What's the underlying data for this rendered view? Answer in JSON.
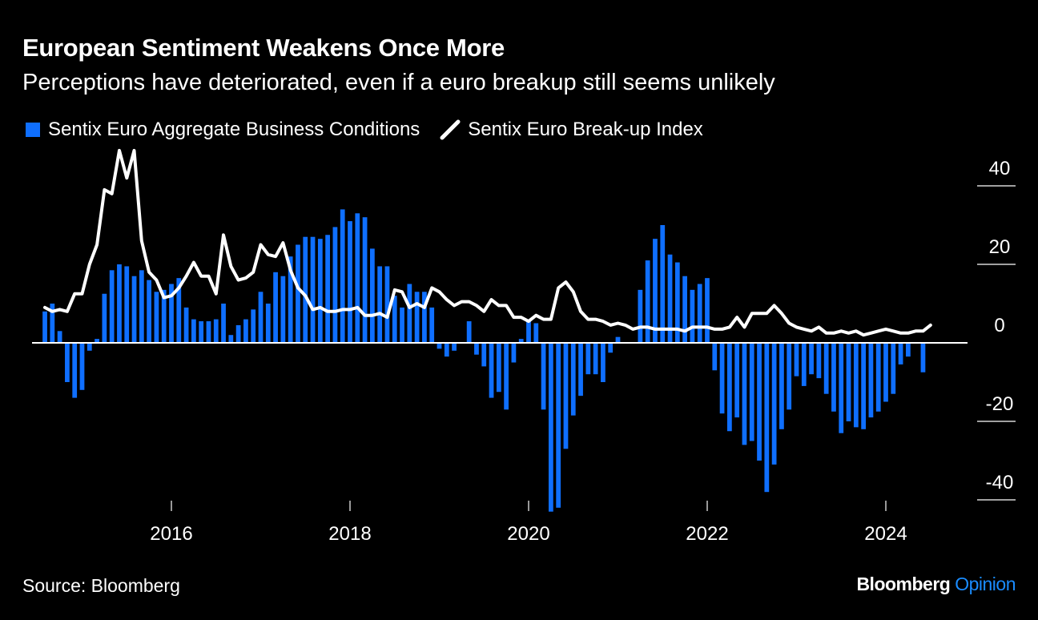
{
  "header": {
    "title": "European Sentiment Weakens Once More",
    "subtitle": "Perceptions have deteriorated, even if a euro breakup still seems unlikely"
  },
  "footer": {
    "source": "Source: Bloomberg",
    "brand_name": "Bloomberg",
    "brand_accent": "Opinion"
  },
  "colors": {
    "background": "#000000",
    "bars": "#0f6fff",
    "line": "#ffffff",
    "zero_line": "#ffffff",
    "brand_accent": "#1a8cff"
  },
  "chart_data": {
    "type": "bar",
    "title": "European Sentiment Weakens Once More",
    "subtitle": "Perceptions have deteriorated, even if a euro breakup still seems unlikely",
    "legend_position": "top-left",
    "grid": false,
    "y_axis": {
      "position": "right",
      "ylim": [
        -42,
        46
      ],
      "ticks": [
        40,
        20,
        0,
        -20,
        -40
      ],
      "tick_labels": [
        "40",
        "20",
        "0",
        "-20",
        "-40"
      ]
    },
    "x_axis": {
      "xlim": [
        2014.58,
        2025.0
      ],
      "ticks": [
        2016,
        2018,
        2020,
        2022,
        2024
      ],
      "tick_labels": [
        "2016",
        "2018",
        "2020",
        "2022",
        "2024"
      ]
    },
    "series": [
      {
        "name": "Sentix Euro Aggregate Business Conditions",
        "type": "bar",
        "start": [
          2014,
          8
        ],
        "values": [
          8,
          10,
          3,
          -10,
          -14,
          -12,
          -2,
          1,
          12.5,
          18.5,
          20,
          19.5,
          17,
          18.5,
          16,
          13,
          13.5,
          15,
          16.5,
          9,
          6,
          5.5,
          5.5,
          6,
          10,
          2,
          4.5,
          6,
          8.5,
          13,
          10,
          18,
          17,
          22,
          25,
          27,
          27,
          26.5,
          27.5,
          29.5,
          34,
          31,
          33,
          32,
          24,
          19.5,
          19.5,
          12,
          9,
          15,
          13,
          13,
          9,
          -1.5,
          -3.5,
          -2,
          0,
          5.5,
          -3,
          -6,
          -14,
          -12.5,
          -17,
          -5,
          1,
          6,
          5,
          -17,
          -43,
          -42,
          -27,
          -18.5,
          -13.5,
          -8,
          -8,
          -10,
          -2.5,
          1.5,
          0,
          0,
          13.5,
          21,
          26.5,
          30,
          22.5,
          20.5,
          17,
          13.5,
          15,
          16.5,
          -7,
          -18,
          -22.5,
          -19,
          -26,
          -25,
          -30,
          -38,
          -31,
          -22,
          -17,
          -8.5,
          -11,
          -8,
          -9,
          -13,
          -17.5,
          -23,
          -20,
          -21.5,
          -22,
          -19,
          -17.5,
          -15,
          -13,
          -5.5,
          -3.5,
          0,
          -7.5
        ]
      },
      {
        "name": "Sentix Euro Break-up Index",
        "type": "line",
        "start": [
          2014,
          8
        ],
        "values": [
          9,
          8,
          8.5,
          8,
          12.5,
          12.5,
          20,
          25,
          39,
          38,
          49,
          42,
          49,
          26,
          18,
          16,
          11.5,
          12,
          14,
          17,
          20.5,
          17,
          17,
          12.5,
          27.5,
          19.5,
          16,
          16.5,
          18,
          25,
          22.5,
          22,
          25.5,
          18.5,
          14,
          12,
          8.5,
          9,
          8,
          8,
          8.5,
          8.5,
          9,
          7,
          7,
          7.5,
          6.5,
          13.5,
          13,
          9,
          10,
          9,
          14,
          13,
          11,
          9.5,
          10.5,
          10.5,
          9.5,
          8,
          11,
          9.5,
          9.5,
          6.5,
          6.5,
          5.5,
          7,
          6,
          6,
          14,
          15.5,
          13,
          8,
          6,
          6,
          5.5,
          4.5,
          5,
          4.5,
          3.5,
          4,
          4,
          3.5,
          3.5,
          3.5,
          3.5,
          3,
          4,
          4,
          4,
          3.5,
          3.5,
          4,
          6.5,
          4,
          7.5,
          7.5,
          7.5,
          9.5,
          7.5,
          5,
          4,
          3.5,
          3,
          4,
          2.5,
          2.5,
          3,
          2.5,
          3,
          2,
          2.5,
          3,
          3.5,
          3,
          2.5,
          2.5,
          3,
          3,
          4.5
        ]
      }
    ]
  }
}
